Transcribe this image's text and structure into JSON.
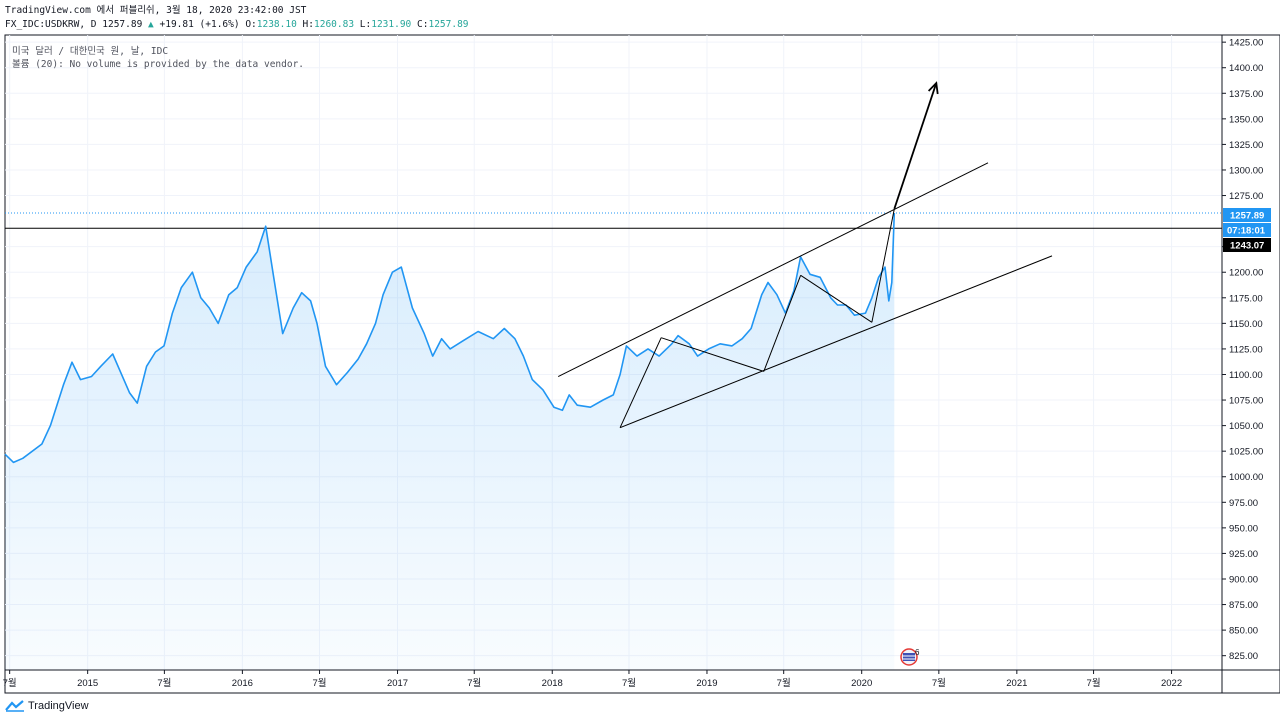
{
  "header": {
    "source_line": "TradingView.com 에서 퍼블리쉬, 3월 18, 2020 23:42:00 JST",
    "symbol": "FX_IDC:USDKRW, D",
    "last_price": "1257.89",
    "change_arrow": "▲",
    "change": "+19.81 (+1.6%)",
    "o_label": "O:",
    "o_value": "1238.10",
    "h_label": "H:",
    "h_value": "1260.83",
    "l_label": "L:",
    "l_value": "1231.90",
    "c_label": "C:",
    "c_value": "1257.89"
  },
  "legend": {
    "title": "미국 달러 / 대한민국 원, 날, IDC",
    "volume_note": "볼륨 (20): No volume is provided by the data vendor."
  },
  "price_tags": {
    "last": "1257.89",
    "countdown": "07:18:01",
    "level": "1243.07"
  },
  "events_badge": "6",
  "footer": {
    "brand": "TradingView"
  },
  "colors": {
    "line": "#2196f3",
    "area": "#2196f3",
    "grid": "#f0f3fa",
    "axis": "#131722",
    "up": "#26a69a",
    "tag_last": "#2196f3",
    "tag_level": "#000000"
  },
  "chart_data": {
    "type": "area",
    "symbol": "FX_IDC:USDKRW",
    "interval": "D",
    "x_tick_labels": [
      "7월",
      "2015",
      "7월",
      "2016",
      "7월",
      "2017",
      "7월",
      "2018",
      "7월",
      "2019",
      "7월",
      "2020",
      "7월",
      "2021",
      "7월",
      "2022"
    ],
    "x_ticks": [
      "2014-07-01",
      "2015-01-01",
      "2015-07-01",
      "2016-01-01",
      "2016-07-01",
      "2017-01-01",
      "2017-07-01",
      "2018-01-01",
      "2018-07-01",
      "2019-01-01",
      "2019-07-01",
      "2020-01-01",
      "2020-07-01",
      "2021-01-01",
      "2021-07-01",
      "2022-01-01"
    ],
    "y_ticks": [
      825,
      850,
      875,
      900,
      925,
      950,
      975,
      1000,
      1025,
      1050,
      1075,
      1100,
      1125,
      1150,
      1175,
      1200,
      1225,
      1275,
      1300,
      1325,
      1350,
      1375,
      1400,
      1425
    ],
    "y_range": [
      811,
      1432
    ],
    "x_range": [
      "2014-06-20",
      "2022-04-30"
    ],
    "series": [
      {
        "x": [
          "2014-06-20",
          "2014-07-10",
          "2014-08-01",
          "2014-09-15",
          "2014-10-05",
          "2014-11-05",
          "2014-11-25",
          "2014-12-15",
          "2015-01-10",
          "2015-02-01",
          "2015-03-01",
          "2015-03-20",
          "2015-04-10",
          "2015-04-28",
          "2015-05-20",
          "2015-06-10",
          "2015-06-30",
          "2015-07-20",
          "2015-08-10",
          "2015-09-05",
          "2015-09-25",
          "2015-10-15",
          "2015-11-05",
          "2015-11-30",
          "2015-12-20",
          "2016-01-10",
          "2016-02-05",
          "2016-02-25",
          "2016-03-15",
          "2016-04-05",
          "2016-04-30",
          "2016-05-20",
          "2016-06-10",
          "2016-06-25",
          "2016-07-15",
          "2016-08-10",
          "2016-09-05",
          "2016-09-30",
          "2016-10-20",
          "2016-11-10",
          "2016-11-28",
          "2016-12-20",
          "2017-01-10",
          "2017-02-05",
          "2017-03-05",
          "2017-03-25",
          "2017-04-15",
          "2017-05-05",
          "2017-06-05",
          "2017-07-10",
          "2017-08-15",
          "2017-09-10",
          "2017-10-05",
          "2017-10-25",
          "2017-11-15",
          "2017-12-10",
          "2018-01-05",
          "2018-01-25",
          "2018-02-10",
          "2018-03-01",
          "2018-04-01",
          "2018-05-01",
          "2018-05-25",
          "2018-06-10",
          "2018-06-25",
          "2018-07-20",
          "2018-08-15",
          "2018-09-10",
          "2018-10-10",
          "2018-10-25",
          "2018-11-20",
          "2018-12-10",
          "2019-01-05",
          "2019-02-01",
          "2019-03-01",
          "2019-03-25",
          "2019-04-15",
          "2019-05-10",
          "2019-05-25",
          "2019-06-15",
          "2019-07-05",
          "2019-07-25",
          "2019-08-10",
          "2019-09-01",
          "2019-09-25",
          "2019-10-20",
          "2019-11-05",
          "2019-11-25",
          "2019-12-15",
          "2020-01-10",
          "2020-01-25",
          "2020-02-10",
          "2020-02-25",
          "2020-03-05",
          "2020-03-12",
          "2020-03-18"
        ],
        "y": [
          1022,
          1014,
          1018,
          1032,
          1050,
          1090,
          1112,
          1095,
          1098,
          1108,
          1120,
          1102,
          1082,
          1072,
          1108,
          1122,
          1128,
          1160,
          1185,
          1200,
          1175,
          1165,
          1150,
          1178,
          1185,
          1205,
          1220,
          1245,
          1195,
          1140,
          1165,
          1180,
          1172,
          1150,
          1108,
          1090,
          1102,
          1115,
          1130,
          1150,
          1178,
          1200,
          1205,
          1165,
          1140,
          1118,
          1135,
          1125,
          1133,
          1142,
          1135,
          1145,
          1135,
          1118,
          1095,
          1085,
          1068,
          1065,
          1080,
          1070,
          1068,
          1075,
          1080,
          1100,
          1128,
          1118,
          1125,
          1118,
          1130,
          1138,
          1130,
          1118,
          1125,
          1130,
          1128,
          1135,
          1145,
          1178,
          1190,
          1178,
          1160,
          1182,
          1215,
          1198,
          1195,
          1175,
          1168,
          1168,
          1158,
          1160,
          1175,
          1195,
          1205,
          1172,
          1190,
          1257.89
        ]
      }
    ],
    "trendlines": [
      {
        "from": [
          "2018-06-10",
          1048
        ],
        "to": [
          "2021-03-25",
          1216
        ]
      },
      {
        "from": [
          "2018-01-15",
          1098
        ],
        "to": [
          "2020-10-25",
          1307
        ]
      },
      {
        "from": [
          "2018-06-10",
          1048
        ],
        "to": [
          "2018-09-15",
          1136
        ]
      },
      {
        "from": [
          "2018-09-15",
          1136
        ],
        "to": [
          "2019-05-15",
          1103
        ]
      },
      {
        "from": [
          "2019-05-15",
          1103
        ],
        "to": [
          "2019-08-10",
          1197
        ]
      },
      {
        "from": [
          "2019-08-10",
          1197
        ],
        "to": [
          "2020-01-25",
          1151
        ]
      },
      {
        "from": [
          "2020-01-25",
          1151
        ],
        "to": [
          "2020-03-18",
          1262
        ]
      }
    ],
    "arrow": {
      "from": [
        "2020-03-18",
        1262
      ],
      "to": [
        "2020-06-25",
        1385
      ]
    },
    "horizontal_line": 1243.07,
    "grid": true
  }
}
